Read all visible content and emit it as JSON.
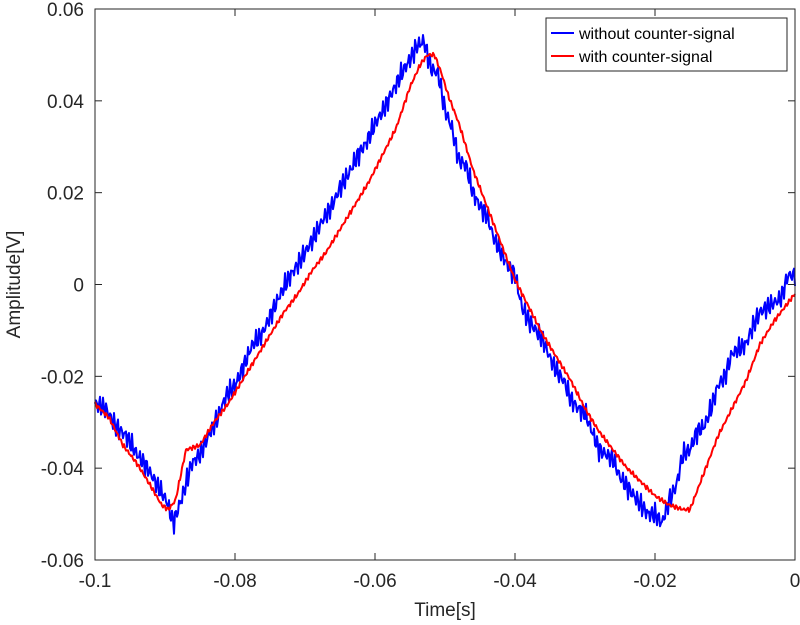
{
  "chart_data": {
    "type": "line",
    "title": "",
    "xlabel": "Time[s]",
    "ylabel": "Amplitude[V]",
    "xlim": [
      -0.1,
      0
    ],
    "ylim": [
      -0.06,
      0.06
    ],
    "grid": false,
    "legend_position": "top-right",
    "x_ticks": [
      "-0.1",
      "-0.08",
      "-0.06",
      "-0.04",
      "-0.02",
      "0"
    ],
    "x_tick_values": [
      -0.1,
      -0.08,
      -0.06,
      -0.04,
      -0.02,
      0
    ],
    "y_ticks": [
      "0.06",
      "0.04",
      "0.02",
      "0",
      "-0.02",
      "-0.04",
      "-0.06"
    ],
    "y_tick_values": [
      0.06,
      0.04,
      0.02,
      0,
      -0.02,
      -0.04,
      -0.06
    ],
    "series": [
      {
        "name": "without counter-signal",
        "color": "#0000ff",
        "x": [
          -0.1,
          -0.0985,
          -0.097,
          -0.0955,
          -0.094,
          -0.0925,
          -0.091,
          -0.0898,
          -0.0888,
          -0.0875,
          -0.0862,
          -0.085,
          -0.0838,
          -0.0825,
          -0.0812,
          -0.08,
          -0.0788,
          -0.0775,
          -0.0762,
          -0.075,
          -0.0738,
          -0.0725,
          -0.0712,
          -0.07,
          -0.0688,
          -0.0675,
          -0.0662,
          -0.065,
          -0.0638,
          -0.0625,
          -0.0612,
          -0.06,
          -0.0588,
          -0.0575,
          -0.0562,
          -0.055,
          -0.054,
          -0.053,
          -0.052,
          -0.051,
          -0.05,
          -0.049,
          -0.048,
          -0.047,
          -0.046,
          -0.045,
          -0.044,
          -0.043,
          -0.042,
          -0.041,
          -0.04,
          -0.039,
          -0.038,
          -0.037,
          -0.036,
          -0.035,
          -0.034,
          -0.033,
          -0.032,
          -0.031,
          -0.03,
          -0.029,
          -0.028,
          -0.027,
          -0.026,
          -0.025,
          -0.024,
          -0.023,
          -0.022,
          -0.021,
          -0.02,
          -0.019,
          -0.018,
          -0.017,
          -0.016,
          -0.015,
          -0.014,
          -0.013,
          -0.012,
          -0.011,
          -0.01,
          -0.009,
          -0.008,
          -0.007,
          -0.006,
          -0.005,
          -0.004,
          -0.003,
          -0.002,
          -0.001,
          0
        ],
        "y": [
          -0.026,
          -0.027,
          -0.031,
          -0.033,
          -0.037,
          -0.04,
          -0.044,
          -0.047,
          -0.052,
          -0.046,
          -0.039,
          -0.037,
          -0.033,
          -0.029,
          -0.024,
          -0.022,
          -0.018,
          -0.013,
          -0.011,
          -0.007,
          -0.003,
          0.001,
          0.004,
          0.007,
          0.01,
          0.014,
          0.017,
          0.021,
          0.024,
          0.028,
          0.031,
          0.035,
          0.038,
          0.042,
          0.046,
          0.049,
          0.052,
          0.053,
          0.047,
          0.046,
          0.038,
          0.034,
          0.027,
          0.026,
          0.02,
          0.017,
          0.015,
          0.01,
          0.007,
          0.004,
          0.002,
          -0.005,
          -0.008,
          -0.01,
          -0.012,
          -0.016,
          -0.019,
          -0.021,
          -0.025,
          -0.027,
          -0.028,
          -0.032,
          -0.036,
          -0.037,
          -0.038,
          -0.042,
          -0.044,
          -0.046,
          -0.048,
          -0.05,
          -0.05,
          -0.052,
          -0.047,
          -0.044,
          -0.037,
          -0.036,
          -0.032,
          -0.031,
          -0.027,
          -0.022,
          -0.02,
          -0.015,
          -0.014,
          -0.013,
          -0.009,
          -0.006,
          -0.005,
          -0.004,
          -0.003,
          0.002,
          0.002
        ],
        "noise": 0.0028
      },
      {
        "name": "with counter-signal",
        "color": "#ff0000",
        "x": [
          -0.1,
          -0.098,
          -0.096,
          -0.094,
          -0.092,
          -0.0905,
          -0.0895,
          -0.0885,
          -0.087,
          -0.085,
          -0.083,
          -0.081,
          -0.079,
          -0.077,
          -0.075,
          -0.073,
          -0.071,
          -0.069,
          -0.067,
          -0.065,
          -0.063,
          -0.061,
          -0.059,
          -0.057,
          -0.055,
          -0.0535,
          -0.0525,
          -0.0515,
          -0.0505,
          -0.0495,
          -0.048,
          -0.046,
          -0.044,
          -0.042,
          -0.04,
          -0.038,
          -0.036,
          -0.034,
          -0.032,
          -0.03,
          -0.028,
          -0.026,
          -0.024,
          -0.022,
          -0.02,
          -0.018,
          -0.016,
          -0.015,
          -0.014,
          -0.013,
          -0.011,
          -0.009,
          -0.007,
          -0.005,
          -0.003,
          -0.001,
          0
        ],
        "y": [
          -0.026,
          -0.029,
          -0.035,
          -0.039,
          -0.044,
          -0.048,
          -0.049,
          -0.047,
          -0.036,
          -0.035,
          -0.03,
          -0.026,
          -0.021,
          -0.016,
          -0.011,
          -0.006,
          -0.002,
          0.003,
          0.007,
          0.012,
          0.017,
          0.022,
          0.028,
          0.034,
          0.043,
          0.048,
          0.05,
          0.05,
          0.046,
          0.041,
          0.035,
          0.025,
          0.017,
          0.009,
          0.001,
          -0.005,
          -0.011,
          -0.016,
          -0.021,
          -0.027,
          -0.032,
          -0.036,
          -0.04,
          -0.043,
          -0.046,
          -0.048,
          -0.049,
          -0.049,
          -0.045,
          -0.041,
          -0.033,
          -0.027,
          -0.021,
          -0.013,
          -0.008,
          -0.004,
          -0.002
        ],
        "noise": 0.0006
      }
    ]
  }
}
